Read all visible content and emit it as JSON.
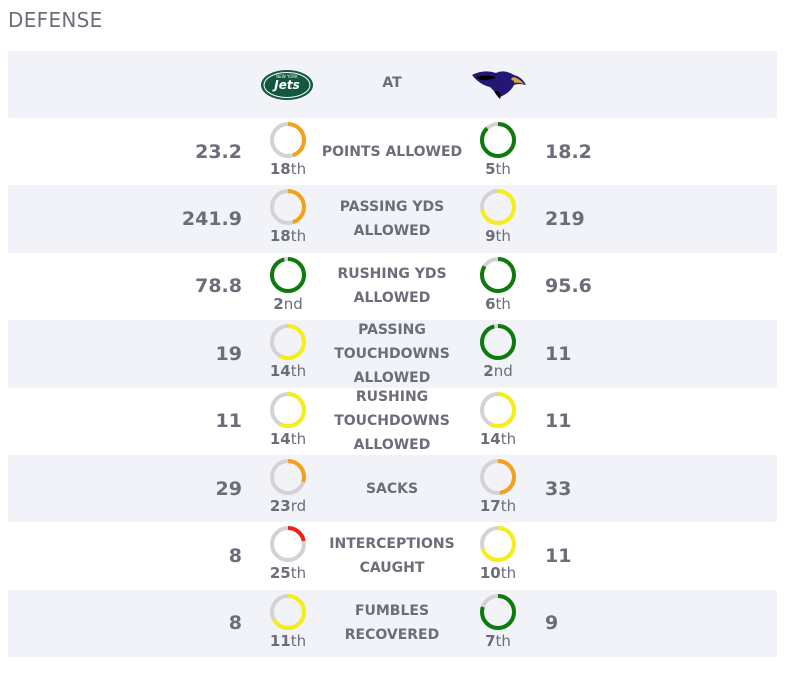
{
  "section_title": "DEFENSE",
  "header": {
    "at_label": "AT",
    "left_logo_icon": "jets-logo",
    "right_logo_icon": "ravens-logo"
  },
  "colors": {
    "green": "#0c7a0c",
    "yellow": "#f5ee1a",
    "orange": "#f3a11b",
    "red": "#e8241a",
    "track": "#d3d3d3"
  },
  "rows": [
    {
      "label": "POINTS ALLOWED",
      "left_value": "23.2",
      "left_rank": "18",
      "left_suffix": "th",
      "left_fill": 0.45,
      "left_color": "orange",
      "right_value": "18.2",
      "right_rank": "5",
      "right_suffix": "th",
      "right_fill": 0.88,
      "right_color": "green"
    },
    {
      "label": "PASSING YDS ALLOWED",
      "left_value": "241.9",
      "left_rank": "18",
      "left_suffix": "th",
      "left_fill": 0.45,
      "left_color": "orange",
      "right_value": "219",
      "right_rank": "9",
      "right_suffix": "th",
      "right_fill": 0.72,
      "right_color": "yellow"
    },
    {
      "label": "RUSHING YDS ALLOWED",
      "left_value": "78.8",
      "left_rank": "2",
      "left_suffix": "nd",
      "left_fill": 0.96,
      "left_color": "green",
      "right_value": "95.6",
      "right_rank": "6",
      "right_suffix": "th",
      "right_fill": 0.84,
      "right_color": "green"
    },
    {
      "label": "PASSING TOUCHDOWNS ALLOWED",
      "left_value": "19",
      "left_rank": "14",
      "left_suffix": "th",
      "left_fill": 0.58,
      "left_color": "yellow",
      "right_value": "11",
      "right_rank": "2",
      "right_suffix": "nd",
      "right_fill": 0.96,
      "right_color": "green"
    },
    {
      "label": "RUSHING TOUCHDOWNS ALLOWED",
      "left_value": "11",
      "left_rank": "14",
      "left_suffix": "th",
      "left_fill": 0.58,
      "left_color": "yellow",
      "right_value": "11",
      "right_rank": "14",
      "right_suffix": "th",
      "right_fill": 0.58,
      "right_color": "yellow"
    },
    {
      "label": "SACKS",
      "left_value": "29",
      "left_rank": "23",
      "left_suffix": "rd",
      "left_fill": 0.3,
      "left_color": "orange",
      "right_value": "33",
      "right_rank": "17",
      "right_suffix": "th",
      "right_fill": 0.48,
      "right_color": "orange"
    },
    {
      "label": "INTERCEPTIONS CAUGHT",
      "left_value": "8",
      "left_rank": "25",
      "left_suffix": "th",
      "left_fill": 0.22,
      "left_color": "red",
      "right_value": "11",
      "right_rank": "10",
      "right_suffix": "th",
      "right_fill": 0.7,
      "right_color": "yellow"
    },
    {
      "label": "FUMBLES RECOVERED",
      "left_value": "8",
      "left_rank": "11",
      "left_suffix": "th",
      "left_fill": 0.67,
      "left_color": "yellow",
      "right_value": "9",
      "right_rank": "7",
      "right_suffix": "th",
      "right_fill": 0.8,
      "right_color": "green"
    }
  ]
}
